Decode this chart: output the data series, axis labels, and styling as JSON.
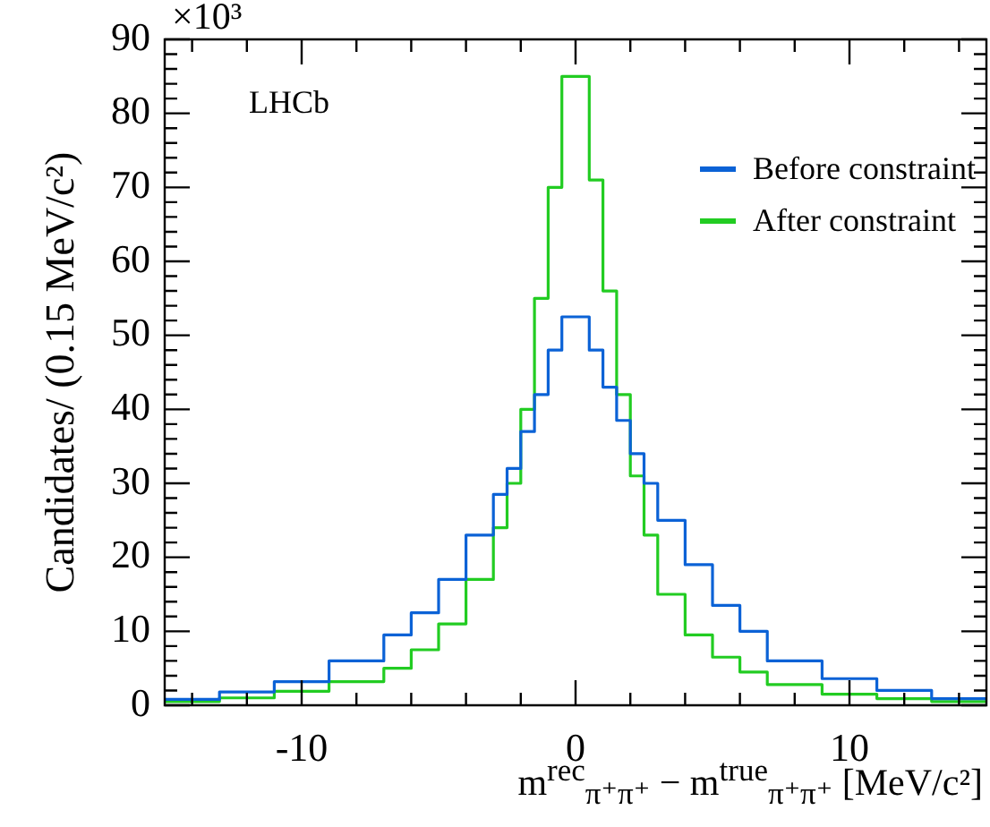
{
  "chart_data": {
    "type": "histogram",
    "xlabel": "m$^{rec}$$_{π⁺π⁺}$ − m$^{true}$$_{π⁺π⁺}$ [MeV/c²]",
    "ylabel": "Candidates/ (0.15 MeV/c²)",
    "annotations": [
      "×10³",
      "LHCb"
    ],
    "bins": [
      -15,
      -13,
      -11,
      -9,
      -7,
      -6,
      -5,
      -4,
      -3,
      -2.5,
      -2,
      -1.5,
      -1,
      -0.5,
      0,
      0.5,
      1,
      1.5,
      2,
      2.5,
      3,
      4,
      5,
      6,
      7,
      9,
      11,
      13,
      15
    ],
    "series": [
      {
        "name": "Before constraint",
        "color": "#0b62d6",
        "values": [
          0.8,
          1.8,
          3.2,
          6,
          9.5,
          12.5,
          17,
          23,
          28.5,
          32,
          37,
          42,
          48,
          52.5,
          52.5,
          48,
          43,
          38.5,
          34,
          30,
          25,
          19,
          13.5,
          10,
          6,
          3.6,
          2,
          0.9
        ]
      },
      {
        "name": "After constraint",
        "color": "#22cc22",
        "values": [
          0.5,
          1,
          1.9,
          3.2,
          5,
          7.5,
          11,
          17,
          24,
          30,
          40,
          55,
          70,
          85,
          85,
          71,
          56,
          42,
          31,
          23,
          15,
          9.5,
          6.5,
          4.5,
          2.8,
          1.5,
          0.9,
          0.5
        ]
      }
    ],
    "xlim": [
      -15,
      15
    ],
    "xticks": [
      -10,
      0,
      10
    ],
    "ylim": [
      0,
      90
    ],
    "yticks": [
      0,
      10,
      20,
      30,
      40,
      50,
      60,
      70,
      80,
      90
    ],
    "grid": false,
    "legend": "top right"
  }
}
